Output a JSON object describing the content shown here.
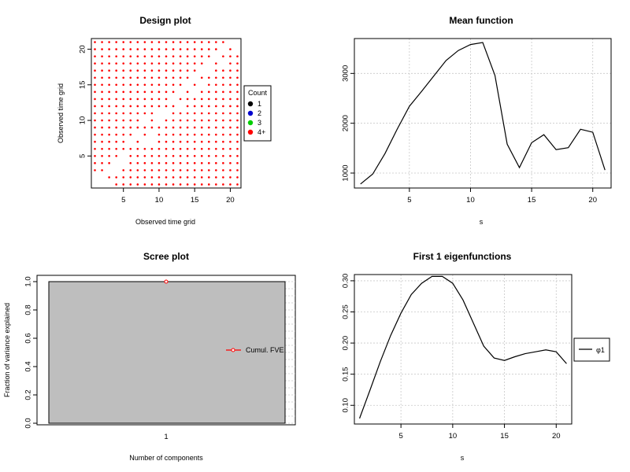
{
  "colors": {
    "design_point": "#ff0000",
    "count_1": "#000000",
    "count_2": "#0000cd",
    "count_3": "#00cd00",
    "count_4plus": "#ff0000",
    "line": "#000000",
    "fve_line": "#ff0000",
    "scree_fill": "#bebebe",
    "grid": "#c8c8c8"
  },
  "chart_data": [
    {
      "type": "scatter",
      "title": "Design plot",
      "xlabel": "Observed time grid",
      "ylabel": "Observed time grid",
      "xlim": [
        0.5,
        21.5
      ],
      "ylim": [
        0.5,
        21.5
      ],
      "xticks": [
        5,
        10,
        15,
        20
      ],
      "yticks": [
        5,
        10,
        15,
        20
      ],
      "grid_points": [
        1,
        21
      ],
      "missing_points": [
        [
          1,
          1
        ],
        [
          1,
          2
        ],
        [
          2,
          1
        ],
        [
          2,
          2
        ],
        [
          3,
          1
        ],
        [
          3,
          3
        ],
        [
          4,
          3
        ],
        [
          4,
          4
        ],
        [
          5,
          4
        ],
        [
          5,
          5
        ],
        [
          6,
          7
        ],
        [
          7,
          8
        ],
        [
          8,
          7
        ],
        [
          8,
          10
        ],
        [
          9,
          7
        ],
        [
          9,
          8
        ],
        [
          10,
          10
        ],
        [
          10,
          11
        ],
        [
          11,
          11
        ],
        [
          12,
          13
        ],
        [
          13,
          12
        ],
        [
          13,
          14
        ],
        [
          14,
          15
        ],
        [
          15,
          14
        ],
        [
          15,
          16
        ],
        [
          16,
          15
        ],
        [
          16,
          17
        ],
        [
          17,
          17
        ],
        [
          17,
          18
        ],
        [
          18,
          19
        ],
        [
          19,
          18
        ],
        [
          19,
          20
        ],
        [
          20,
          21
        ],
        [
          21,
          20
        ],
        [
          21,
          21
        ]
      ],
      "legend": {
        "title": "Count",
        "position": "right",
        "entries": [
          "1",
          "2",
          "3",
          "4+"
        ]
      }
    },
    {
      "type": "line",
      "title": "Mean function",
      "xlabel": "s",
      "ylabel": "",
      "xlim": [
        0.5,
        21.5
      ],
      "ylim": [
        700,
        3700
      ],
      "xticks": [
        5,
        10,
        15,
        20
      ],
      "yticks": [
        1000,
        2000,
        3000
      ],
      "grid": true,
      "x": [
        1,
        2,
        3,
        4,
        5,
        6,
        7,
        8,
        9,
        10,
        11,
        12,
        13,
        14,
        15,
        16,
        17,
        18,
        19,
        20,
        21
      ],
      "y": [
        780,
        980,
        1390,
        1880,
        2340,
        2640,
        2950,
        3260,
        3460,
        3580,
        3620,
        2960,
        1580,
        1110,
        1610,
        1770,
        1470,
        1510,
        1880,
        1820,
        1060
      ]
    },
    {
      "type": "line",
      "title": "Scree plot",
      "xlabel": "Number of components",
      "ylabel": "Fraction of variance explained",
      "xlim": [
        0.5,
        1.5
      ],
      "ylim": [
        0,
        1
      ],
      "xticks": [
        1
      ],
      "yticks": [
        0.0,
        0.2,
        0.4,
        0.6,
        0.8,
        1.0
      ],
      "bars": [
        {
          "x": 1,
          "value": 1.0
        }
      ],
      "series": [
        {
          "name": "Cumul. FVE",
          "x": [
            1
          ],
          "values": [
            1.0
          ]
        }
      ],
      "legend": {
        "position": "right",
        "entries": [
          "Cumul. FVE"
        ]
      }
    },
    {
      "type": "line",
      "title": "First 1 eigenfunctions",
      "xlabel": "s",
      "ylabel": "",
      "xlim": [
        0.5,
        21.5
      ],
      "ylim": [
        0.07,
        0.31
      ],
      "xticks": [
        5,
        10,
        15,
        20
      ],
      "yticks": [
        0.1,
        0.15,
        0.2,
        0.25,
        0.3
      ],
      "grid": true,
      "series": [
        {
          "name": "φ1",
          "x": [
            1,
            2,
            3,
            4,
            5,
            6,
            7,
            8,
            9,
            10,
            11,
            12,
            13,
            14,
            15,
            16,
            17,
            18,
            19,
            20,
            21
          ],
          "values": [
            0.079,
            0.124,
            0.17,
            0.212,
            0.248,
            0.278,
            0.296,
            0.307,
            0.307,
            0.296,
            0.269,
            0.232,
            0.195,
            0.176,
            0.172,
            0.178,
            0.183,
            0.186,
            0.189,
            0.186,
            0.167
          ]
        }
      ],
      "legend": {
        "position": "right",
        "entries": [
          "φ1"
        ]
      }
    }
  ]
}
